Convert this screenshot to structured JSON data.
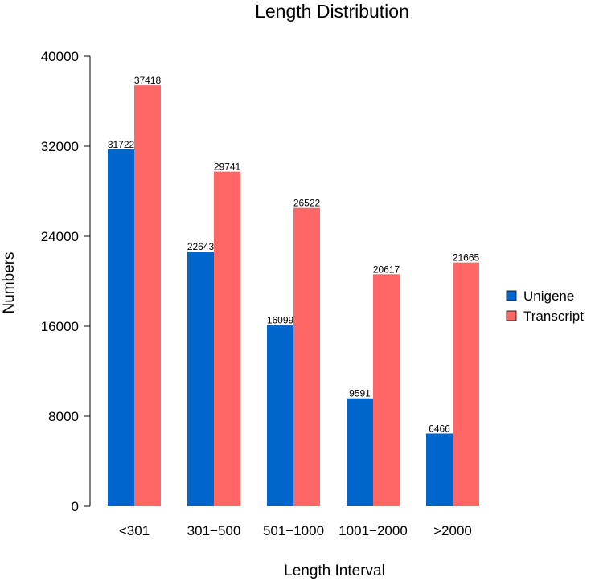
{
  "chart_data": {
    "type": "bar",
    "title": "Length Distribution",
    "xlabel": "Length Interval",
    "ylabel": "Numbers",
    "categories": [
      "<301",
      "301−500",
      "501−1000",
      "1001−2000",
      ">2000"
    ],
    "series": [
      {
        "name": "Unigene",
        "color": "#0066CC",
        "values": [
          31722,
          22643,
          16099,
          9591,
          6466
        ]
      },
      {
        "name": "Transcript",
        "color": "#FF6666",
        "values": [
          37418,
          29741,
          26522,
          20617,
          21665
        ]
      }
    ],
    "ylim": [
      0,
      40000
    ],
    "yticks": [
      0,
      8000,
      16000,
      24000,
      32000,
      40000
    ],
    "grid": false,
    "legend": "right"
  }
}
